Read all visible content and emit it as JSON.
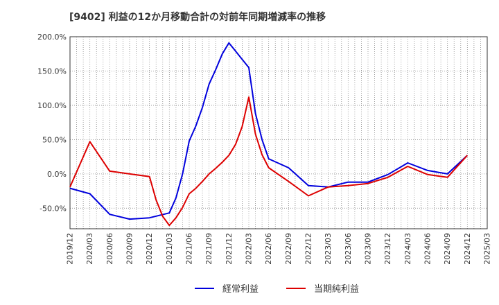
{
  "chart_data": {
    "type": "line",
    "title": "[9402]  利益の12か月移動合計の対前年同期増減率の推移",
    "ylim": [
      -80,
      200
    ],
    "yticks": [
      -50,
      0,
      50,
      100,
      150,
      200
    ],
    "ytick_labels": [
      "-50.0%",
      "0.0%",
      "50.0%",
      "100.0%",
      "150.0%",
      "200.0%"
    ],
    "x_labels": [
      "2019/12",
      "2020/03",
      "2020/06",
      "2020/09",
      "2020/12",
      "2021/03",
      "2021/06",
      "2021/09",
      "2021/12",
      "2022/03",
      "2022/06",
      "2022/09",
      "2022/12",
      "2023/03",
      "2023/06",
      "2023/09",
      "2023/12",
      "2024/03",
      "2024/06",
      "2024/09",
      "2024/12",
      "2025/03"
    ],
    "x_range": [
      0,
      63
    ],
    "grid": true,
    "legend_position": "bottom",
    "series": [
      {
        "name": "経常利益",
        "color": "#0000dd",
        "x": [
          0,
          3,
          6,
          9,
          12,
          15,
          16,
          17,
          18,
          19,
          20,
          21,
          22,
          23,
          24,
          25,
          26,
          27,
          28,
          29,
          30,
          33,
          36,
          39,
          42,
          45,
          48,
          51,
          54,
          57,
          60
        ],
        "y": [
          -21,
          -29,
          -59,
          -66,
          -64,
          -57,
          -35,
          0,
          48,
          70,
          97,
          131,
          152,
          175,
          191,
          179,
          167,
          155,
          88,
          50,
          22,
          9,
          -17,
          -19,
          -12,
          -12,
          -1,
          16,
          5,
          0,
          27
        ]
      },
      {
        "name": "当期純利益",
        "color": "#dd0000",
        "x": [
          0,
          3,
          6,
          9,
          12,
          13,
          14,
          15,
          16,
          17,
          18,
          19,
          20,
          21,
          22,
          23,
          24,
          25,
          26,
          27,
          28,
          29,
          30,
          33,
          36,
          39,
          42,
          45,
          48,
          51,
          54,
          57,
          60
        ],
        "y": [
          -19,
          47,
          4,
          0,
          -4,
          -38,
          -62,
          -75,
          -64,
          -49,
          -29,
          -21,
          -11,
          0,
          8,
          17,
          27,
          43,
          69,
          112,
          58,
          28,
          9,
          -11,
          -32,
          -19,
          -17,
          -14,
          -5,
          11,
          -1,
          -5,
          27
        ]
      }
    ]
  }
}
